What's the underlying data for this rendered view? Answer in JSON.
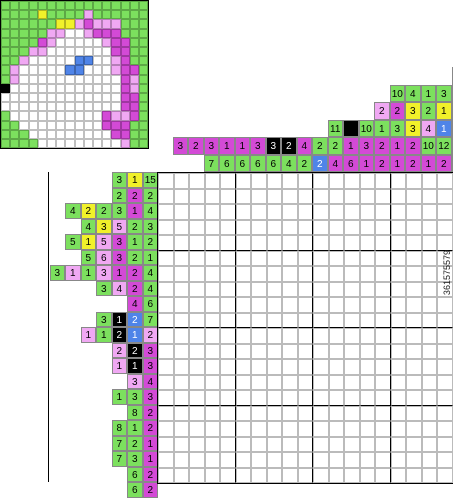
{
  "colors": {
    "g": "#7ce05e",
    "p": "#d34ad6",
    "k": "#f0a8f3",
    "y": "#f1f12a",
    "b": "#4f84e8",
    "x": "#000000",
    "w": "#ffffff"
  },
  "preview": {
    "rows": [
      "gggggggggggggggg",
      "ggggyggggkggggggg",
      "ggggggyykpkkkggg",
      "gggggkkwwkpppggg",
      "ggggpkwwwwwkppgg",
      "gggkkwwwwwwwppgg",
      "ggkwwwwwbbwwkpgg",
      "gkwwwwwbbwwwkppg",
      "gkwwwwwwwwwwwpkg",
      "xwwwwwwwwwwwwpkg",
      "wwwwwwwwwwwwwppg",
      "wwwwwwwwwwwwwppg",
      "gwwwwwwwwwwpkkpg",
      "ggwwwwwwwwwpppgg",
      "gggwwwwwwwwwppgg",
      "ggggwwwwwwwwwkgg"
    ]
  },
  "col_clues": [
    [
      {
        "v": "2",
        "c": "y"
      }
    ],
    [
      {
        "v": "10",
        "c": "g"
      },
      {
        "v": "4",
        "c": "g"
      },
      {
        "v": "1",
        "c": "g"
      },
      {
        "v": "3",
        "c": "g"
      },
      {
        "v": "3",
        "c": "g"
      }
    ],
    [
      {
        "v": "2",
        "c": "k"
      },
      {
        "v": "2",
        "c": "p"
      },
      {
        "v": "3",
        "c": "y"
      },
      {
        "v": "2",
        "c": "g"
      },
      {
        "v": "1",
        "c": "y"
      },
      {
        "v": "4",
        "c": "p"
      }
    ],
    [
      {
        "v": "11",
        "c": "g"
      },
      {
        "v": "",
        "c": "x"
      },
      {
        "v": "10",
        "c": "g"
      },
      {
        "v": "1",
        "c": "g"
      },
      {
        "v": "3",
        "c": "g"
      },
      {
        "v": "3",
        "c": "y"
      },
      {
        "v": "4",
        "c": "k"
      },
      {
        "v": "1",
        "c": "b"
      },
      {
        "v": "2",
        "c": "g"
      }
    ],
    [
      {
        "v": "3",
        "c": "p"
      },
      {
        "v": "2",
        "c": "p"
      },
      {
        "v": "3",
        "c": "p"
      },
      {
        "v": "1",
        "c": "p"
      },
      {
        "v": "1",
        "c": "p"
      },
      {
        "v": "3",
        "c": "p"
      },
      {
        "v": "3",
        "c": "x"
      },
      {
        "v": "2",
        "c": "x"
      },
      {
        "v": "4",
        "c": "p"
      },
      {
        "v": "2",
        "c": "g"
      },
      {
        "v": "2",
        "c": "g"
      },
      {
        "v": "1",
        "c": "p"
      },
      {
        "v": "3",
        "c": "p"
      },
      {
        "v": "2",
        "c": "p"
      },
      {
        "v": "1",
        "c": "p"
      },
      {
        "v": "2",
        "c": "p"
      },
      {
        "v": "10",
        "c": "g"
      },
      {
        "v": "12",
        "c": "g"
      },
      {
        "v": "6",
        "c": "g"
      }
    ],
    [
      {
        "v": "7",
        "c": "g"
      },
      {
        "v": "6",
        "c": "g"
      },
      {
        "v": "6",
        "c": "g"
      },
      {
        "v": "6",
        "c": "g"
      },
      {
        "v": "6",
        "c": "g"
      },
      {
        "v": "4",
        "c": "g"
      },
      {
        "v": "2",
        "c": "g"
      },
      {
        "v": "2",
        "c": "b"
      },
      {
        "v": "4",
        "c": "p"
      },
      {
        "v": "6",
        "c": "p"
      },
      {
        "v": "1",
        "c": "p"
      },
      {
        "v": "2",
        "c": "p"
      },
      {
        "v": "1",
        "c": "p"
      },
      {
        "v": "2",
        "c": "p"
      },
      {
        "v": "1",
        "c": "p"
      },
      {
        "v": "2",
        "c": "p"
      },
      {
        "v": "14",
        "c": "p"
      }
    ]
  ],
  "top_extra": [
    {
      "v": "1",
      "c": "g",
      "col": 13,
      "row": 0
    },
    {
      "v": "5",
      "c": "k",
      "col": 13,
      "row": 1
    },
    {
      "v": "2",
      "c": "g",
      "col": 14,
      "row": 1
    },
    {
      "v": "3",
      "c": "g",
      "col": 11,
      "row": 2
    },
    {
      "v": "2",
      "c": "g",
      "col": 12,
      "row": 2
    },
    {
      "v": "2",
      "c": "k",
      "col": 13,
      "row": 2
    },
    {
      "v": "3",
      "c": "g",
      "col": 14,
      "row": 2
    },
    {
      "v": "3",
      "c": "g",
      "col": 15,
      "row": 2
    },
    {
      "v": "1",
      "c": "p",
      "col": 12,
      "row": 3
    },
    {
      "v": "3",
      "c": "g",
      "col": 13,
      "row": 3
    },
    {
      "v": "1",
      "c": "g",
      "col": 14,
      "row": 3
    },
    {
      "v": "2",
      "c": "p",
      "col": 15,
      "row": 3
    },
    {
      "v": "5",
      "c": "g",
      "col": 16,
      "row": 3
    },
    {
      "v": "4",
      "c": "g",
      "col": 17,
      "row": 3
    },
    {
      "v": "5",
      "c": "g",
      "col": 18,
      "row": 3
    }
  ],
  "row_clues": [
    [
      {
        "v": "3",
        "c": "g"
      },
      {
        "v": "1",
        "c": "y"
      },
      {
        "v": "15",
        "c": "g"
      }
    ],
    [
      {
        "v": "2",
        "c": "g"
      },
      {
        "v": "2",
        "c": "p"
      },
      {
        "v": "2",
        "c": "g"
      }
    ],
    [
      {
        "v": "4",
        "c": "g"
      },
      {
        "v": "2",
        "c": "y"
      },
      {
        "v": "2",
        "c": "g"
      },
      {
        "v": "3",
        "c": "g"
      },
      {
        "v": "1",
        "c": "p"
      },
      {
        "v": "4",
        "c": "g"
      }
    ],
    [
      {
        "v": "4",
        "c": "g"
      },
      {
        "v": "3",
        "c": "y"
      },
      {
        "v": "5",
        "c": "k"
      },
      {
        "v": "2",
        "c": "g"
      },
      {
        "v": "3",
        "c": "g"
      }
    ],
    [
      {
        "v": "5",
        "c": "g"
      },
      {
        "v": "1",
        "c": "y"
      },
      {
        "v": "5",
        "c": "k"
      },
      {
        "v": "3",
        "c": "p"
      },
      {
        "v": "1",
        "c": "g"
      },
      {
        "v": "2",
        "c": "g"
      }
    ],
    [
      {
        "v": "5",
        "c": "g"
      },
      {
        "v": "6",
        "c": "k"
      },
      {
        "v": "3",
        "c": "p"
      },
      {
        "v": "2",
        "c": "g"
      },
      {
        "v": "1",
        "c": "g"
      }
    ],
    [
      {
        "v": "3",
        "c": "g"
      },
      {
        "v": "1",
        "c": "k"
      },
      {
        "v": "1",
        "c": "g"
      },
      {
        "v": "3",
        "c": "k"
      },
      {
        "v": "1",
        "c": "p"
      },
      {
        "v": "2",
        "c": "p"
      },
      {
        "v": "4",
        "c": "g"
      }
    ],
    [
      {
        "v": "3",
        "c": "g"
      },
      {
        "v": "4",
        "c": "k"
      },
      {
        "v": "2",
        "c": "p"
      },
      {
        "v": "4",
        "c": "g"
      }
    ],
    [
      {
        "v": "4",
        "c": "p"
      },
      {
        "v": "6",
        "c": "g"
      }
    ],
    [
      {
        "v": "3",
        "c": "g"
      },
      {
        "v": "1",
        "c": "x"
      },
      {
        "v": "2",
        "c": "b"
      },
      {
        "v": "7",
        "c": "g"
      }
    ],
    [
      {
        "v": "1",
        "c": "k"
      },
      {
        "v": "1",
        "c": "g"
      },
      {
        "v": "2",
        "c": "x"
      },
      {
        "v": "1",
        "c": "b"
      },
      {
        "v": "2",
        "c": "k"
      }
    ],
    [
      {
        "v": "2",
        "c": "k"
      },
      {
        "v": "2",
        "c": "x"
      },
      {
        "v": "3",
        "c": "p"
      }
    ],
    [
      {
        "v": "1",
        "c": "k"
      },
      {
        "v": "1",
        "c": "x"
      },
      {
        "v": "3",
        "c": "p"
      }
    ],
    [
      {
        "v": "3",
        "c": "k"
      },
      {
        "v": "4",
        "c": "p"
      }
    ],
    [
      {
        "v": "1",
        "c": "g"
      },
      {
        "v": "3",
        "c": "g"
      },
      {
        "v": "3",
        "c": "p"
      }
    ],
    [
      {
        "v": "8",
        "c": "g"
      },
      {
        "v": "2",
        "c": "p"
      }
    ],
    [
      {
        "v": "8",
        "c": "g"
      },
      {
        "v": "1",
        "c": "g"
      },
      {
        "v": "2",
        "c": "p"
      }
    ],
    [
      {
        "v": "7",
        "c": "g"
      },
      {
        "v": "2",
        "c": "g"
      },
      {
        "v": "1",
        "c": "p"
      }
    ],
    [
      {
        "v": "7",
        "c": "g"
      },
      {
        "v": "3",
        "c": "g"
      },
      {
        "v": "1",
        "c": "p"
      }
    ],
    [
      {
        "v": "6",
        "c": "g"
      },
      {
        "v": "2",
        "c": "p"
      }
    ],
    [
      {
        "v": "6",
        "c": "g"
      },
      {
        "v": "2",
        "c": "p"
      }
    ]
  ],
  "board": {
    "cols": 20,
    "rows": 20
  },
  "watermark": "361575579"
}
